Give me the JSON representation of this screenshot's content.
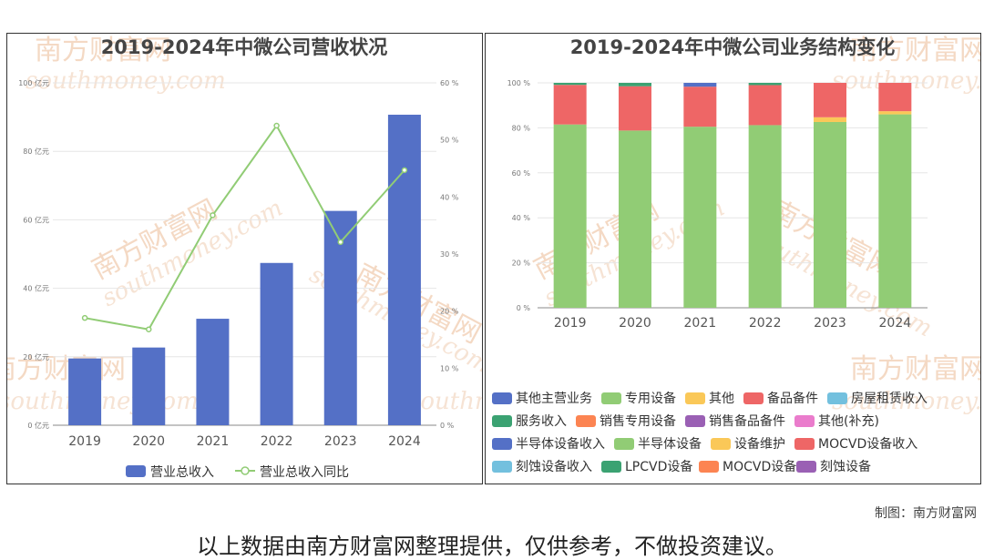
{
  "colors": {
    "bar": "#5470c6",
    "line": "#91cc75",
    "grid": "#e6e6e6"
  },
  "watermark": {
    "brand": "南方财富网",
    "site": "southmoney.com"
  },
  "chart_data": [
    {
      "type": "bar",
      "title": "2019-2024年中微公司营收状况",
      "categories": [
        "2019",
        "2020",
        "2021",
        "2022",
        "2023",
        "2024"
      ],
      "left_axis": {
        "ticks": [
          "0 亿元",
          "20 亿元",
          "40 亿元",
          "60 亿元",
          "80 亿元",
          "100 亿元"
        ],
        "ylim": [
          0,
          100
        ]
      },
      "right_axis": {
        "ticks": [
          "0 %",
          "10 %",
          "20 %",
          "30 %",
          "40 %",
          "50 %",
          "60 %"
        ],
        "ylim": [
          0,
          60
        ]
      },
      "series": [
        {
          "name": "营业总收入",
          "kind": "bar",
          "axis": "left",
          "color": "#5470c6",
          "values": [
            19.5,
            22.7,
            31.1,
            47.4,
            62.6,
            90.7
          ]
        },
        {
          "name": "营业总收入同比",
          "kind": "line",
          "axis": "right",
          "color": "#91cc75",
          "values": [
            18.8,
            16.8,
            36.8,
            52.5,
            32.1,
            44.7
          ]
        }
      ],
      "grid": true,
      "legend": "bottom"
    },
    {
      "type": "bar",
      "stacked": true,
      "title": "2019-2024年中微公司业务结构变化",
      "categories": [
        "2019",
        "2020",
        "2021",
        "2022",
        "2023",
        "2024"
      ],
      "y_axis": {
        "ticks": [
          "0 %",
          "20 %",
          "40 %",
          "60 %",
          "80 %",
          "100 %"
        ],
        "ylim": [
          0,
          100
        ]
      },
      "series": [
        {
          "name": "专用设备",
          "color": "#91cc75",
          "values": [
            81.5,
            78.8,
            80.5,
            81.2,
            82.6,
            86.0
          ]
        },
        {
          "name": "设备维护",
          "color": "#fac858",
          "values": [
            0,
            0,
            0,
            0,
            2.1,
            1.4
          ]
        },
        {
          "name": "备品备件",
          "color": "#ee6666",
          "values": [
            17.6,
            19.7,
            17.8,
            17.8,
            15.3,
            12.6
          ]
        },
        {
          "name": "服务收入",
          "color": "#3ba272",
          "values": [
            0.9,
            1.5,
            0,
            1.0,
            0,
            0
          ]
        },
        {
          "name": "其他主营业务",
          "color": "#5470c6",
          "values": [
            0,
            0,
            1.7,
            0,
            0,
            0
          ]
        }
      ],
      "legend": {
        "placement": "bottom",
        "items": [
          {
            "name": "其他主营业务",
            "color": "#5470c6"
          },
          {
            "name": "专用设备",
            "color": "#91cc75"
          },
          {
            "name": "其他",
            "color": "#fac858"
          },
          {
            "name": "备品备件",
            "color": "#ee6666"
          },
          {
            "name": "房屋租赁收入",
            "color": "#73c0de"
          },
          {
            "name": "服务收入",
            "color": "#3ba272"
          },
          {
            "name": "销售专用设备",
            "color": "#fc8452"
          },
          {
            "name": "销售备品备件",
            "color": "#9a60b4"
          },
          {
            "name": "其他(补充)",
            "color": "#ea7ccc"
          },
          {
            "name": "半导体设备收入",
            "color": "#5470c6"
          },
          {
            "name": "半导体设备",
            "color": "#91cc75"
          },
          {
            "name": "设备维护",
            "color": "#fac858"
          },
          {
            "name": "MOCVD设备收入",
            "color": "#ee6666"
          },
          {
            "name": "刻蚀设备收入",
            "color": "#73c0de"
          },
          {
            "name": "LPCVD设备",
            "color": "#3ba272"
          },
          {
            "name": "MOCVD设备",
            "color": "#fc8452"
          },
          {
            "name": "刻蚀设备",
            "color": "#9a60b4"
          }
        ]
      }
    }
  ],
  "footer": {
    "credit": "制图：南方财富网",
    "disclaimer": "以上数据由南方财富网整理提供，仅供参考，不做投资建议。"
  }
}
